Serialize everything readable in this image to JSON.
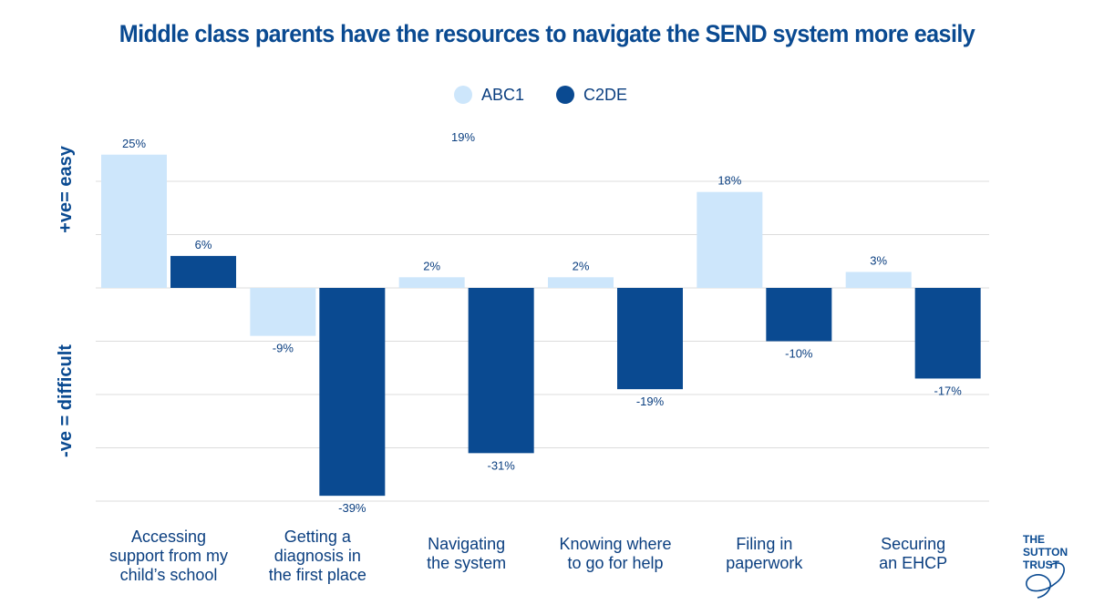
{
  "chart_data": {
    "type": "bar",
    "title": "Middle class parents have the resources to navigate the SEND system more easily",
    "categories": [
      [
        "Accessing",
        "support from my",
        "child’s school"
      ],
      [
        "Getting a",
        "diagnosis in",
        "the first place"
      ],
      [
        "Navigating",
        "the system"
      ],
      [
        "Knowing where",
        "to go for help"
      ],
      [
        "Filing in",
        "paperwork"
      ],
      [
        "Securing",
        "an EHCP"
      ]
    ],
    "series": [
      {
        "name": "ABC1",
        "color": "#cde6fb",
        "values": [
          25,
          -9,
          2,
          2,
          18,
          3
        ],
        "labels": [
          "25%",
          "-9%",
          "2%",
          "2%",
          "18%",
          "3%"
        ]
      },
      {
        "name": "C2DE",
        "color": "#0a4a91",
        "values": [
          6,
          -39,
          -31,
          -19,
          -10,
          -17
        ],
        "labels": [
          "6%",
          "-39%",
          "-31%",
          "-19%",
          "-10%",
          "-17%"
        ]
      }
    ],
    "annotations": [
      {
        "text": "19%"
      }
    ],
    "ylabel_positive": "+ve= easy",
    "ylabel_negative": "-ve = difficult",
    "ylim": [
      -40,
      25
    ],
    "grid": true
  },
  "logo": {
    "lines": [
      "THE",
      "SUTTON",
      "TRUST"
    ]
  }
}
